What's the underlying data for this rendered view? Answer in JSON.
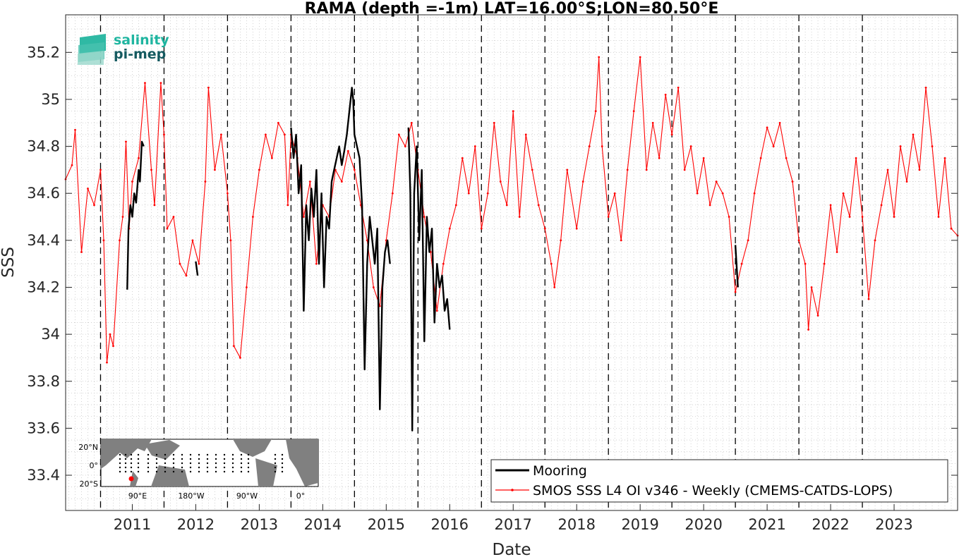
{
  "chart_data": {
    "type": "line",
    "title": "RAMA (depth =-1m) LAT=16.00°S;LON=80.50°E",
    "xlabel": "Date",
    "ylabel": "SSS",
    "xlim": [
      2010.45,
      2024.5
    ],
    "ylim": [
      33.25,
      35.36
    ],
    "x_ticks": [
      {
        "value": 2011,
        "label": "2011"
      },
      {
        "value": 2012,
        "label": "2012"
      },
      {
        "value": 2013,
        "label": "2013"
      },
      {
        "value": 2014,
        "label": "2014"
      },
      {
        "value": 2015,
        "label": "2015"
      },
      {
        "value": 2016,
        "label": "2016"
      },
      {
        "value": 2017,
        "label": "2017"
      },
      {
        "value": 2018,
        "label": "2018"
      },
      {
        "value": 2019,
        "label": "2019"
      },
      {
        "value": 2020,
        "label": "2020"
      },
      {
        "value": 2021,
        "label": "2021"
      },
      {
        "value": 2022,
        "label": "2022"
      },
      {
        "value": 2023,
        "label": "2023"
      }
    ],
    "y_ticks": [
      {
        "value": 33.4,
        "label": "33.4"
      },
      {
        "value": 33.6,
        "label": "33.6"
      },
      {
        "value": 33.8,
        "label": "33.8"
      },
      {
        "value": 34.0,
        "label": "34"
      },
      {
        "value": 34.2,
        "label": "34.2"
      },
      {
        "value": 34.4,
        "label": "34.4"
      },
      {
        "value": 34.6,
        "label": "34.6"
      },
      {
        "value": 34.8,
        "label": "34.8"
      },
      {
        "value": 35.0,
        "label": "35"
      },
      {
        "value": 35.2,
        "label": "35.2"
      }
    ],
    "year_markers": [
      2011,
      2012,
      2013,
      2014,
      2015,
      2016,
      2017,
      2018,
      2019,
      2020,
      2021,
      2022,
      2023
    ],
    "grid": "dotted minor grid",
    "legend_position": "bottom-right",
    "series": [
      {
        "name": "Mooring",
        "color": "#000000",
        "segments": [
          [
            [
              2011.42,
              34.19
            ],
            [
              2011.44,
              34.45
            ],
            [
              2011.47,
              34.55
            ],
            [
              2011.5,
              34.5
            ],
            [
              2011.53,
              34.6
            ],
            [
              2011.56,
              34.56
            ],
            [
              2011.6,
              34.7
            ],
            [
              2011.62,
              34.65
            ],
            [
              2011.65,
              34.82
            ],
            [
              2011.68,
              34.8
            ]
          ],
          [
            [
              2012.5,
              34.31
            ],
            [
              2012.53,
              34.25
            ]
          ],
          [
            [
              2014.0,
              34.88
            ],
            [
              2014.04,
              34.75
            ],
            [
              2014.08,
              34.85
            ],
            [
              2014.12,
              34.6
            ],
            [
              2014.16,
              34.72
            ],
            [
              2014.2,
              34.1
            ],
            [
              2014.24,
              34.55
            ],
            [
              2014.28,
              34.4
            ],
            [
              2014.32,
              34.62
            ],
            [
              2014.36,
              34.5
            ],
            [
              2014.4,
              34.7
            ],
            [
              2014.44,
              34.3
            ],
            [
              2014.48,
              34.6
            ],
            [
              2014.52,
              34.2
            ],
            [
              2014.56,
              34.5
            ],
            [
              2014.6,
              34.45
            ],
            [
              2014.64,
              34.65
            ],
            [
              2014.68,
              34.7
            ],
            [
              2014.72,
              34.75
            ],
            [
              2014.76,
              34.8
            ],
            [
              2014.8,
              34.72
            ],
            [
              2014.84,
              34.78
            ],
            [
              2014.88,
              34.85
            ],
            [
              2014.92,
              34.95
            ],
            [
              2014.96,
              35.05
            ],
            [
              2014.98,
              35.0
            ],
            [
              2015.0,
              34.85
            ],
            [
              2015.04,
              34.8
            ],
            [
              2015.08,
              34.75
            ],
            [
              2015.12,
              34.55
            ],
            [
              2015.16,
              33.85
            ],
            [
              2015.2,
              34.3
            ],
            [
              2015.24,
              34.5
            ],
            [
              2015.28,
              34.4
            ],
            [
              2015.32,
              34.3
            ],
            [
              2015.36,
              34.45
            ],
            [
              2015.4,
              33.68
            ],
            [
              2015.44,
              34.2
            ],
            [
              2015.48,
              34.35
            ],
            [
              2015.52,
              34.4
            ],
            [
              2015.56,
              34.3
            ]
          ],
          [
            [
              2015.85,
              34.88
            ],
            [
              2015.88,
              34.6
            ],
            [
              2015.91,
              33.59
            ],
            [
              2015.94,
              34.6
            ],
            [
              2015.98,
              34.8
            ],
            [
              2016.02,
              34.4
            ],
            [
              2016.06,
              34.7
            ],
            [
              2016.1,
              33.97
            ],
            [
              2016.14,
              34.5
            ],
            [
              2016.18,
              34.35
            ],
            [
              2016.22,
              34.45
            ],
            [
              2016.26,
              34.05
            ],
            [
              2016.3,
              34.3
            ],
            [
              2016.34,
              34.2
            ],
            [
              2016.38,
              34.25
            ],
            [
              2016.42,
              34.1
            ],
            [
              2016.46,
              34.15
            ],
            [
              2016.5,
              34.02
            ]
          ],
          [
            [
              2021.0,
              34.38
            ],
            [
              2021.04,
              34.2
            ]
          ]
        ]
      },
      {
        "name": "SMOS SSS L4 OI v346 - Weekly (CMEMS-CATDS-LOPS)",
        "color": "#ff0000",
        "points": [
          [
            2010.45,
            34.66
          ],
          [
            2010.55,
            34.72
          ],
          [
            2010.6,
            34.87
          ],
          [
            2010.7,
            34.35
          ],
          [
            2010.8,
            34.62
          ],
          [
            2010.9,
            34.55
          ],
          [
            2011.0,
            34.7
          ],
          [
            2011.05,
            34.4
          ],
          [
            2011.1,
            33.88
          ],
          [
            2011.15,
            34.0
          ],
          [
            2011.2,
            33.95
          ],
          [
            2011.3,
            34.4
          ],
          [
            2011.35,
            34.5
          ],
          [
            2011.4,
            34.82
          ],
          [
            2011.45,
            34.45
          ],
          [
            2011.5,
            34.65
          ],
          [
            2011.6,
            34.75
          ],
          [
            2011.7,
            35.07
          ],
          [
            2011.8,
            34.7
          ],
          [
            2011.85,
            34.55
          ],
          [
            2011.95,
            35.07
          ],
          [
            2012.0,
            34.85
          ],
          [
            2012.05,
            34.45
          ],
          [
            2012.15,
            34.5
          ],
          [
            2012.25,
            34.3
          ],
          [
            2012.35,
            34.25
          ],
          [
            2012.45,
            34.4
          ],
          [
            2012.55,
            34.3
          ],
          [
            2012.65,
            34.65
          ],
          [
            2012.7,
            35.05
          ],
          [
            2012.8,
            34.7
          ],
          [
            2012.9,
            34.85
          ],
          [
            2013.0,
            34.6
          ],
          [
            2013.05,
            34.4
          ],
          [
            2013.1,
            33.95
          ],
          [
            2013.2,
            33.9
          ],
          [
            2013.3,
            34.2
          ],
          [
            2013.4,
            34.5
          ],
          [
            2013.5,
            34.7
          ],
          [
            2013.6,
            34.85
          ],
          [
            2013.7,
            34.75
          ],
          [
            2013.8,
            34.9
          ],
          [
            2013.9,
            34.85
          ],
          [
            2013.95,
            34.55
          ],
          [
            2014.0,
            34.85
          ],
          [
            2014.1,
            34.75
          ],
          [
            2014.2,
            34.5
          ],
          [
            2014.3,
            34.65
          ],
          [
            2014.4,
            34.3
          ],
          [
            2014.5,
            34.55
          ],
          [
            2014.6,
            34.5
          ],
          [
            2014.7,
            34.7
          ],
          [
            2014.8,
            34.65
          ],
          [
            2014.9,
            34.78
          ],
          [
            2015.0,
            34.7
          ],
          [
            2015.1,
            34.55
          ],
          [
            2015.2,
            34.4
          ],
          [
            2015.3,
            34.2
          ],
          [
            2015.4,
            34.12
          ],
          [
            2015.5,
            34.4
          ],
          [
            2015.6,
            34.6
          ],
          [
            2015.7,
            34.85
          ],
          [
            2015.8,
            34.8
          ],
          [
            2015.9,
            34.9
          ],
          [
            2016.0,
            34.7
          ],
          [
            2016.1,
            34.5
          ],
          [
            2016.2,
            34.35
          ],
          [
            2016.3,
            34.1
          ],
          [
            2016.4,
            34.3
          ],
          [
            2016.5,
            34.45
          ],
          [
            2016.6,
            34.55
          ],
          [
            2016.7,
            34.75
          ],
          [
            2016.8,
            34.6
          ],
          [
            2016.9,
            34.8
          ],
          [
            2017.0,
            34.45
          ],
          [
            2017.1,
            34.6
          ],
          [
            2017.2,
            34.9
          ],
          [
            2017.3,
            34.65
          ],
          [
            2017.4,
            34.55
          ],
          [
            2017.5,
            34.95
          ],
          [
            2017.6,
            34.5
          ],
          [
            2017.7,
            34.85
          ],
          [
            2017.8,
            34.7
          ],
          [
            2017.9,
            34.55
          ],
          [
            2018.0,
            34.45
          ],
          [
            2018.1,
            34.3
          ],
          [
            2018.15,
            34.2
          ],
          [
            2018.25,
            34.4
          ],
          [
            2018.35,
            34.7
          ],
          [
            2018.5,
            34.45
          ],
          [
            2018.6,
            34.65
          ],
          [
            2018.7,
            34.8
          ],
          [
            2018.8,
            34.95
          ],
          [
            2018.85,
            35.18
          ],
          [
            2018.9,
            34.8
          ],
          [
            2019.0,
            34.5
          ],
          [
            2019.1,
            34.6
          ],
          [
            2019.2,
            34.4
          ],
          [
            2019.3,
            34.7
          ],
          [
            2019.4,
            34.95
          ],
          [
            2019.5,
            35.18
          ],
          [
            2019.6,
            34.7
          ],
          [
            2019.7,
            34.9
          ],
          [
            2019.8,
            34.75
          ],
          [
            2019.9,
            35.02
          ],
          [
            2020.0,
            34.85
          ],
          [
            2020.1,
            35.05
          ],
          [
            2020.2,
            34.7
          ],
          [
            2020.3,
            34.8
          ],
          [
            2020.4,
            34.6
          ],
          [
            2020.5,
            34.75
          ],
          [
            2020.6,
            34.55
          ],
          [
            2020.7,
            34.65
          ],
          [
            2020.8,
            34.6
          ],
          [
            2020.9,
            34.5
          ],
          [
            2021.0,
            34.18
          ],
          [
            2021.1,
            34.3
          ],
          [
            2021.2,
            34.4
          ],
          [
            2021.3,
            34.6
          ],
          [
            2021.4,
            34.75
          ],
          [
            2021.5,
            34.88
          ],
          [
            2021.6,
            34.8
          ],
          [
            2021.7,
            34.9
          ],
          [
            2021.8,
            34.75
          ],
          [
            2021.9,
            34.65
          ],
          [
            2022.0,
            34.4
          ],
          [
            2022.1,
            34.3
          ],
          [
            2022.15,
            34.02
          ],
          [
            2022.2,
            34.2
          ],
          [
            2022.3,
            34.08
          ],
          [
            2022.4,
            34.3
          ],
          [
            2022.5,
            34.55
          ],
          [
            2022.6,
            34.35
          ],
          [
            2022.7,
            34.6
          ],
          [
            2022.8,
            34.5
          ],
          [
            2022.9,
            34.75
          ],
          [
            2023.0,
            34.5
          ],
          [
            2023.1,
            34.15
          ],
          [
            2023.2,
            34.4
          ],
          [
            2023.3,
            34.55
          ],
          [
            2023.4,
            34.7
          ],
          [
            2023.5,
            34.5
          ],
          [
            2023.6,
            34.8
          ],
          [
            2023.7,
            34.65
          ],
          [
            2023.8,
            34.85
          ],
          [
            2023.9,
            34.7
          ],
          [
            2024.0,
            35.05
          ],
          [
            2024.1,
            34.8
          ],
          [
            2024.2,
            34.5
          ],
          [
            2024.3,
            34.75
          ],
          [
            2024.4,
            34.45
          ],
          [
            2024.5,
            34.42
          ]
        ]
      }
    ]
  },
  "logo": {
    "line1": "salinity",
    "line2": "pi-mep"
  },
  "inset_map": {
    "y_labels": [
      "20°N",
      "0°",
      "20°S"
    ],
    "x_labels": [
      "90°E",
      "180°W",
      "90°W",
      "0°"
    ]
  },
  "colors": {
    "plot_background": "#ffffff",
    "axis": "#262626",
    "mooring": "#000000",
    "smos": "#ff0000",
    "inset_land": "#808080",
    "inset_marker": "#ff0000"
  }
}
